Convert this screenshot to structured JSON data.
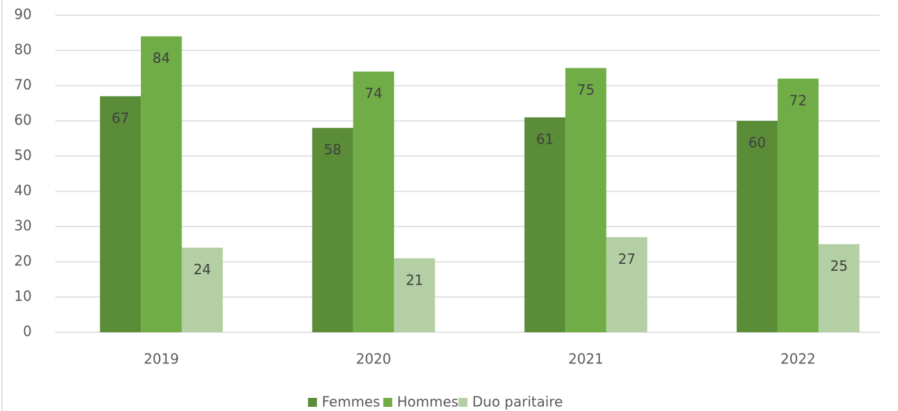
{
  "chart_data": {
    "type": "bar",
    "categories": [
      "2019",
      "2020",
      "2021",
      "2022"
    ],
    "series": [
      {
        "name": "Femmes",
        "color": "#5b8c38",
        "values": [
          67,
          58,
          61,
          60
        ]
      },
      {
        "name": "Hommes",
        "color": "#70ad47",
        "values": [
          84,
          74,
          75,
          72
        ]
      },
      {
        "name": "Duo paritaire",
        "color": "#b4cfa3",
        "values": [
          24,
          21,
          27,
          25
        ]
      }
    ],
    "ylim": [
      0,
      90
    ],
    "yticks": [
      0,
      10,
      20,
      30,
      40,
      50,
      60,
      70,
      80,
      90
    ],
    "grid": true,
    "legend": "bottom"
  }
}
